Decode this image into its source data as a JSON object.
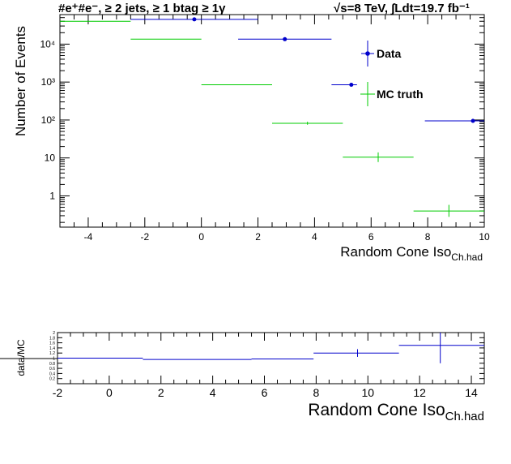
{
  "header": {
    "left_title": "#e⁺#e⁻, ≥ 2 jets, ≥ 1 btag ≥ 1γ",
    "right_title": "√s=8 TeV,  ∫Ldt=19.7 fb⁻¹"
  },
  "chart_data": [
    {
      "type": "scatter",
      "title": "",
      "xlabel": "Random Cone Iso",
      "xlabel_sub": "Ch.had",
      "ylabel": "Number of Events",
      "xlim": [
        -5,
        10
      ],
      "ylim": [
        0.15,
        60000
      ],
      "log_y": true,
      "x_ticks": [
        -4,
        -2,
        0,
        2,
        4,
        6,
        8,
        10
      ],
      "y_ticks": [
        {
          "value": 1,
          "label": "1"
        },
        {
          "value": 10,
          "label": "10"
        },
        {
          "value": 100,
          "label": "10²"
        },
        {
          "value": 1000,
          "label": "10³"
        },
        {
          "value": 10000,
          "label": "10⁴"
        }
      ],
      "legend_position": "top-right",
      "series": [
        {
          "name": "Data",
          "color": "#0000cc",
          "points": [
            {
              "x": -0.25,
              "xlo": -2.5,
              "xhi": 2.0,
              "y": 45000
            },
            {
              "x": 2.95,
              "xlo": 1.3,
              "xhi": 4.6,
              "y": 13500
            },
            {
              "x": 5.3,
              "xlo": 4.6,
              "xhi": 5.5,
              "y": 850
            },
            {
              "x": 9.6,
              "xlo": 7.9,
              "xhi": 10.0,
              "y": 95
            }
          ]
        },
        {
          "name": "MC truth",
          "color": "#00cc00",
          "points": [
            {
              "x": -3.8,
              "xlo": -5.0,
              "xhi": -2.5,
              "y": 40000
            },
            {
              "x": 0.0,
              "xlo": -2.5,
              "xhi": 0.0,
              "y": 13500
            },
            {
              "x": 1.25,
              "xlo": 0.0,
              "xhi": 2.5,
              "y": 850
            },
            {
              "x": 3.75,
              "xlo": 2.5,
              "xhi": 5.0,
              "y": 82,
              "ylo": 75,
              "yhi": 90
            },
            {
              "x": 6.25,
              "xlo": 5.0,
              "xhi": 7.5,
              "y": 10.5,
              "ylo": 7.8,
              "yhi": 14
            },
            {
              "x": 8.75,
              "xlo": 7.5,
              "xhi": 10.0,
              "y": 0.4,
              "ylo": 0.28,
              "yhi": 0.58
            }
          ]
        }
      ]
    },
    {
      "type": "scatter",
      "title": "",
      "xlabel": "Random Cone Iso",
      "xlabel_sub": "Ch.had",
      "ylabel": "data/MC",
      "xlim": [
        -2,
        14.5
      ],
      "ylim": [
        0,
        2
      ],
      "x_ticks": [
        -2,
        0,
        2,
        4,
        6,
        8,
        10,
        12,
        14
      ],
      "y_ticks": [
        {
          "value": 0.2,
          "label": "0.2"
        },
        {
          "value": 0.4,
          "label": "0.4"
        },
        {
          "value": 0.6,
          "label": "0.6"
        },
        {
          "value": 0.8,
          "label": "0.8"
        },
        {
          "value": 1.0,
          "label": "1"
        },
        {
          "value": 1.2,
          "label": "1.2"
        },
        {
          "value": 1.4,
          "label": "1.4"
        },
        {
          "value": 1.6,
          "label": "1.6"
        },
        {
          "value": 1.8,
          "label": "1.8"
        },
        {
          "value": 2.0,
          "label": "2"
        }
      ],
      "series": [
        {
          "name": "",
          "color": "#0000cc",
          "points": [
            {
              "x": -0.5,
              "xlo": -2.0,
              "xhi": 1.3,
              "y": 1.0
            },
            {
              "x": 3.3,
              "xlo": 1.3,
              "xhi": 5.5,
              "y": 0.95
            },
            {
              "x": 6.3,
              "xlo": 5.5,
              "xhi": 7.9,
              "y": 0.97
            },
            {
              "x": 9.6,
              "xlo": 7.9,
              "xhi": 11.2,
              "y": 1.2,
              "ylo": 1.05,
              "yhi": 1.35
            },
            {
              "x": 12.8,
              "xlo": 11.2,
              "xhi": 14.5,
              "y": 1.5,
              "ylo": 0.8,
              "yhi": 2.0
            }
          ]
        }
      ]
    }
  ]
}
